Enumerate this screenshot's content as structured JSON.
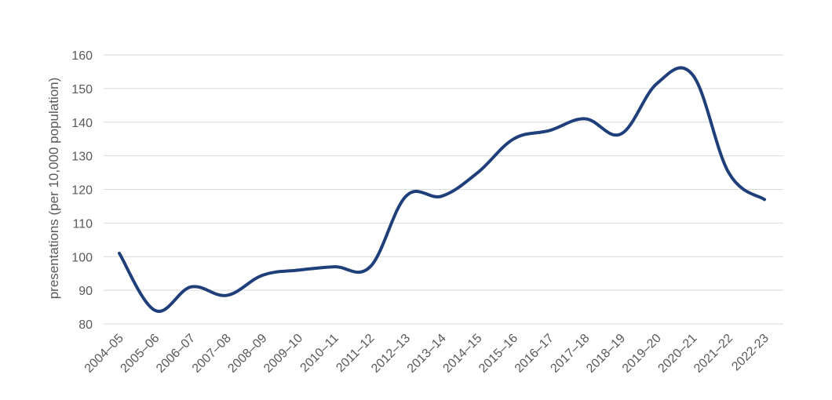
{
  "chart_data": {
    "type": "line",
    "title": "",
    "xlabel": "",
    "ylabel": "presentations (per 10,000 population)",
    "ylim": [
      80,
      160
    ],
    "yticks": [
      80,
      90,
      100,
      110,
      120,
      130,
      140,
      150,
      160
    ],
    "grid": true,
    "legend": "none",
    "categories": [
      "2004–05",
      "2005–06",
      "2006–07",
      "2007–08",
      "2008–09",
      "2009–10",
      "2010–11",
      "2011–12",
      "2012–13",
      "2013–14",
      "2014–15",
      "2015–16",
      "2016–17",
      "2017–18",
      "2018–19",
      "2019–20",
      "2020–21",
      "2021–22",
      "2022-23"
    ],
    "series": [
      {
        "name": "",
        "color": "#1f3f7a",
        "values": [
          101,
          84,
          91,
          88.5,
          94.5,
          96,
          97,
          97,
          118,
          118,
          125,
          135,
          137.5,
          141,
          136.5,
          151.5,
          154,
          125,
          117
        ]
      }
    ]
  }
}
